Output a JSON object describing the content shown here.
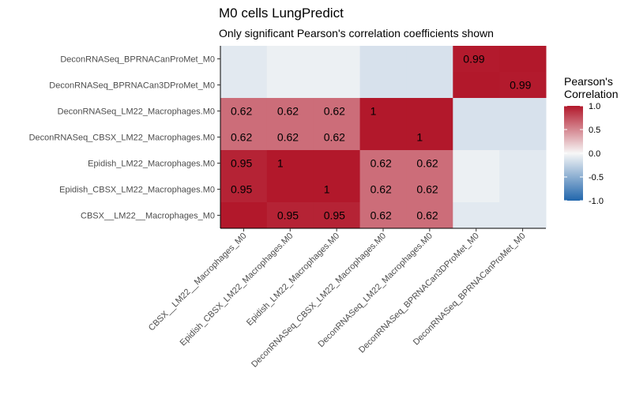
{
  "chart_data": {
    "type": "heatmap",
    "title": "M0 cells LungPredict",
    "subtitle": "Only significant Pearson's correlation coefficients shown",
    "x_categories": [
      "CBSX__LM22__Macrophages_M0",
      "Epidish_CBSX_LM22_Macrophages.M0",
      "Epidish_LM22_Macrophages.M0",
      "DeconRNASeq_CBSX_LM22_Macrophages.M0",
      "DeconRNASeq_LM22_Macrophages.M0",
      "DeconRNASeq_BPRNACan3DProMet_M0",
      "DeconRNASeq_BPRNACanProMet_M0"
    ],
    "y_categories": [
      "DeconRNASeq_BPRNACanProMet_M0",
      "DeconRNASeq_BPRNACan3DProMet_M0",
      "DeconRNASeq_LM22_Macrophages.M0",
      "DeconRNASeq_CBSX_LM22_Macrophages.M0",
      "Epidish_LM22_Macrophages.M0",
      "Epidish_CBSX_LM22_Macrophages.M0",
      "CBSX__LM22__Macrophages_M0"
    ],
    "values": [
      [
        -0.1,
        -0.05,
        -0.05,
        -0.15,
        -0.15,
        0.99,
        1.0
      ],
      [
        -0.1,
        -0.05,
        -0.05,
        -0.15,
        -0.15,
        1.0,
        0.99
      ],
      [
        0.62,
        0.62,
        0.62,
        1.0,
        1.0,
        -0.15,
        -0.15
      ],
      [
        0.62,
        0.62,
        0.62,
        1.0,
        1.0,
        -0.15,
        -0.15
      ],
      [
        0.95,
        1.0,
        1.0,
        0.62,
        0.62,
        -0.05,
        -0.1
      ],
      [
        0.95,
        1.0,
        1.0,
        0.62,
        0.62,
        -0.05,
        -0.1
      ],
      [
        1.0,
        0.95,
        0.95,
        0.62,
        0.62,
        -0.1,
        -0.1
      ]
    ],
    "labels": [
      [
        "",
        "",
        "",
        "",
        "",
        "0.99",
        ""
      ],
      [
        "",
        "",
        "",
        "",
        "",
        "",
        "0.99"
      ],
      [
        "0.62",
        "0.62",
        "0.62",
        "1",
        "",
        "",
        ""
      ],
      [
        "0.62",
        "0.62",
        "0.62",
        "",
        "1",
        "",
        ""
      ],
      [
        "0.95",
        "1",
        "",
        "0.62",
        "0.62",
        "",
        ""
      ],
      [
        "0.95",
        "",
        "1",
        "0.62",
        "0.62",
        "",
        ""
      ],
      [
        "",
        "0.95",
        "0.95",
        "0.62",
        "0.62",
        "",
        ""
      ]
    ],
    "legend": {
      "title_line1": "Pearson's",
      "title_line2": "Correlation",
      "ticks": [
        "1.0",
        "0.5",
        "0.0",
        "-0.5",
        "-1.0"
      ],
      "tick_values": [
        1.0,
        0.5,
        0.0,
        -0.5,
        -1.0
      ],
      "position": "right"
    },
    "color_scale": {
      "low": "#2166ac",
      "mid": "#f7f7f7",
      "high": "#b2182b",
      "limits": [
        -1,
        1
      ]
    },
    "grid": false
  }
}
